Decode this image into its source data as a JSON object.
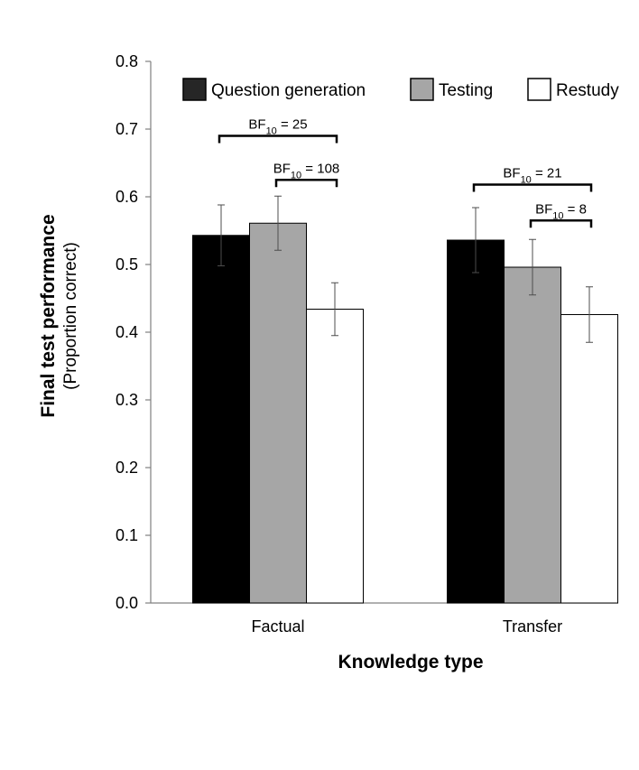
{
  "chart_data": {
    "type": "bar",
    "categories": [
      "Factual",
      "Transfer"
    ],
    "series": [
      {
        "name": "Question generation",
        "color": "#000000",
        "values": [
          0.543,
          0.536
        ],
        "errors": [
          0.045,
          0.048
        ]
      },
      {
        "name": "Testing",
        "color": "#a6a6a6",
        "values": [
          0.561,
          0.496
        ],
        "errors": [
          0.04,
          0.041
        ]
      },
      {
        "name": "Restudy",
        "color": "#ffffff",
        "values": [
          0.434,
          0.426
        ],
        "errors": [
          0.039,
          0.041
        ]
      }
    ],
    "ylim": [
      0.0,
      0.8
    ],
    "yticks": [
      "0.0",
      "0.1",
      "0.2",
      "0.3",
      "0.4",
      "0.5",
      "0.6",
      "0.7",
      "0.8"
    ],
    "ylabel": "Final test performance",
    "ylabel_sub": "(Proportion correct)",
    "xlabel": "Knowledge type",
    "legend_position": "top",
    "grid": false,
    "annotations": [
      {
        "category": 0,
        "from_series": 0,
        "to_series": 2,
        "level": 0.69,
        "label_prefix": "BF",
        "label_sub": "10",
        "label_value": " = 25"
      },
      {
        "category": 0,
        "from_series": 1,
        "to_series": 2,
        "level": 0.625,
        "label_prefix": "BF",
        "label_sub": "10",
        "label_value": " = 108"
      },
      {
        "category": 1,
        "from_series": 0,
        "to_series": 2,
        "level": 0.618,
        "label_prefix": "BF",
        "label_sub": "10",
        "label_value": " = 21"
      },
      {
        "category": 1,
        "from_series": 1,
        "to_series": 2,
        "level": 0.565,
        "label_prefix": "BF",
        "label_sub": "10",
        "label_value": " = 8"
      }
    ]
  }
}
